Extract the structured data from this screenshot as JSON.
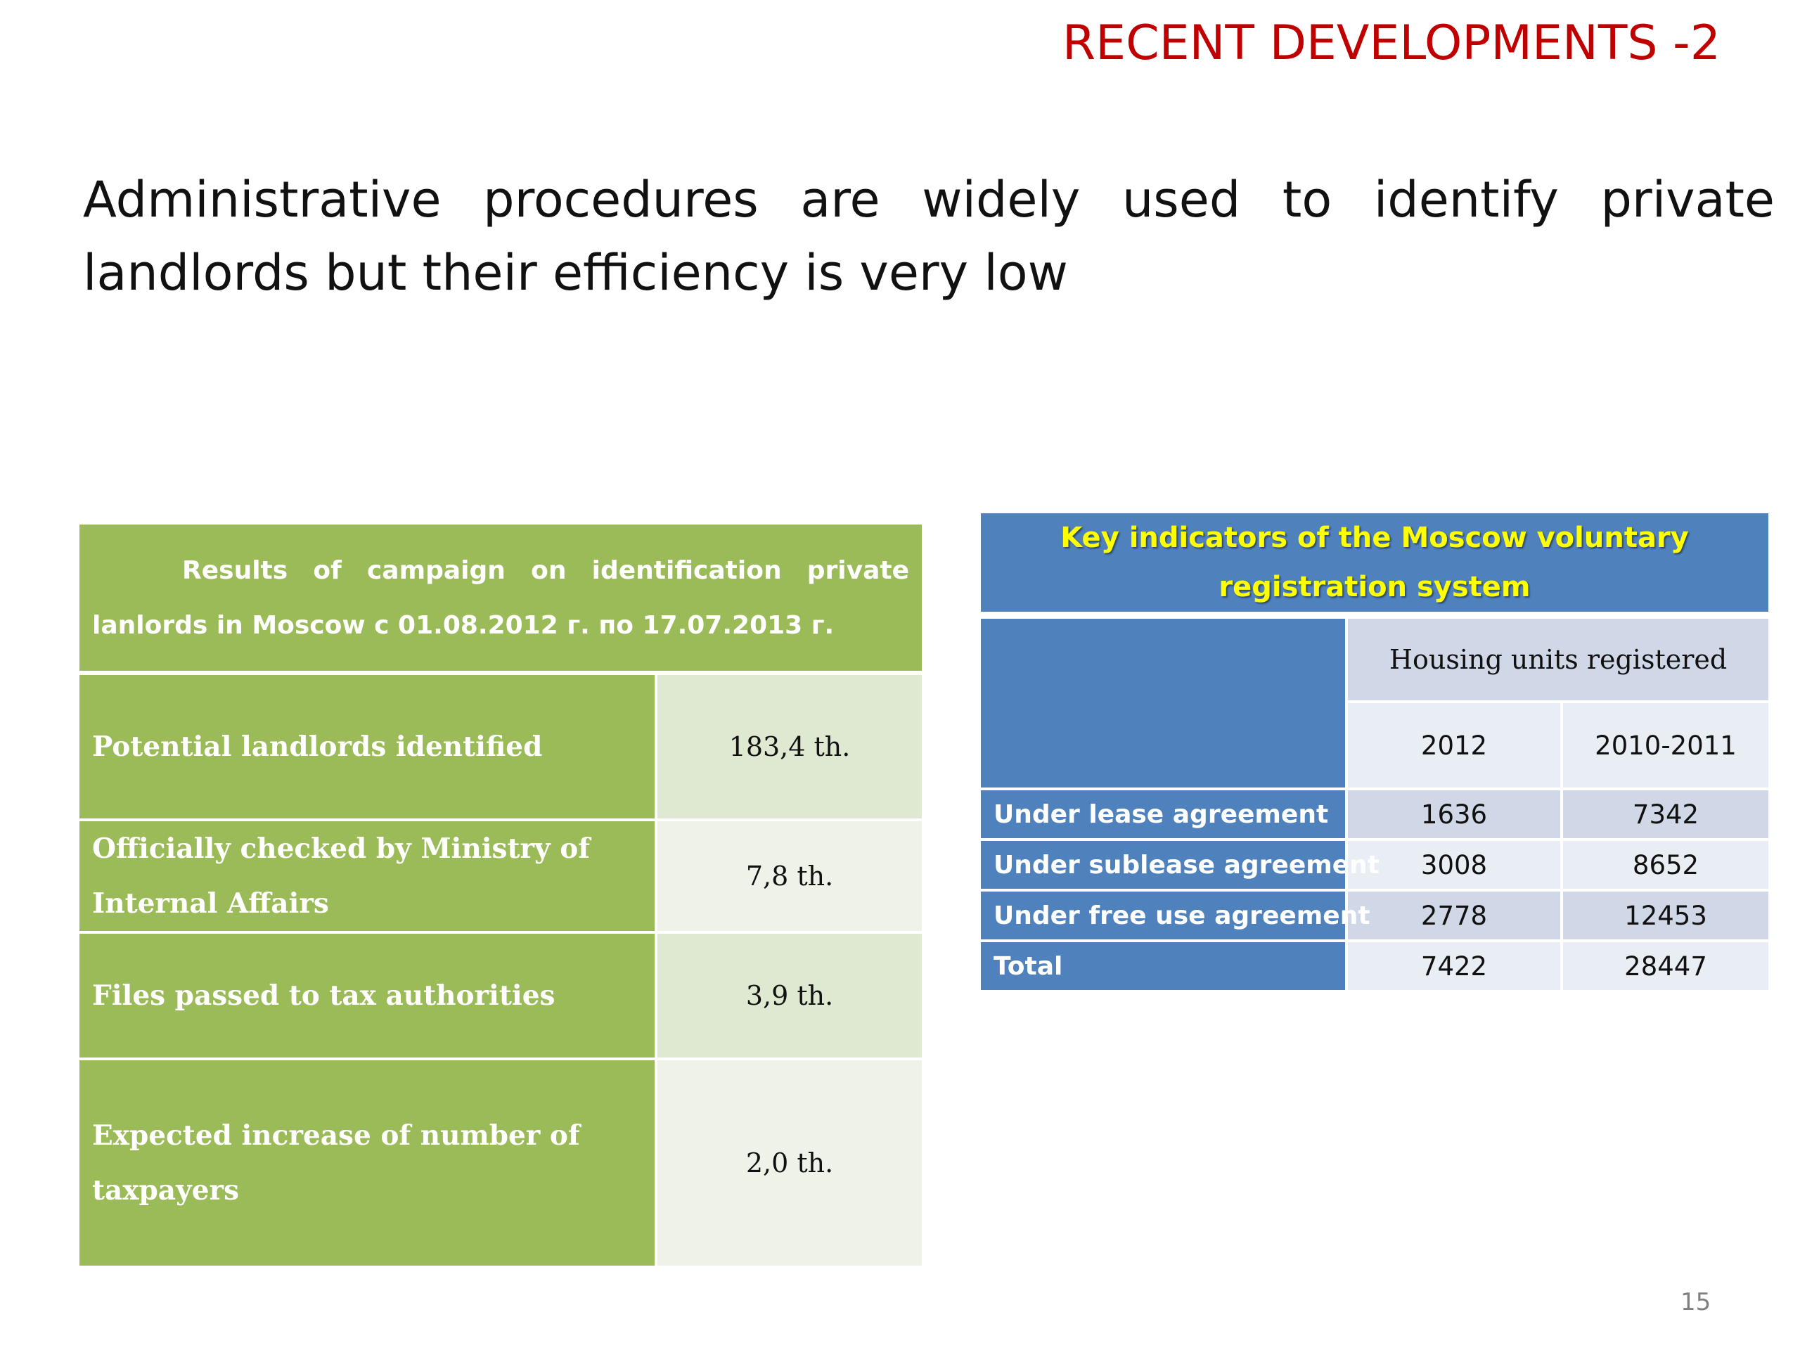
{
  "slide": {
    "title": "RECENT DEVELOPMENTS -2",
    "headline": "Administrative procedures are widely used to identify private landlords but their efficiency is very low",
    "page_number": "15"
  },
  "left_table": {
    "header": "Results of campaign on identification private lanlords in Moscow c 01.08.2012 г. по 17.07.2013 г.",
    "rows": [
      {
        "label": "Potential landlords identified",
        "value": "183,4 th."
      },
      {
        "label": "Officially checked by Ministry of  Internal Affairs",
        "value": "7,8 th."
      },
      {
        "label": "Files passed to tax authorities",
        "value": "3,9 th."
      },
      {
        "label": "Expected increase of number of taxpayers",
        "value": "2,0 th."
      }
    ]
  },
  "right_table": {
    "header": "Key indicators of the Moscow voluntary registration system",
    "group_header": "Housing units registered",
    "years": [
      "2012",
      "2010-2011"
    ],
    "rows": [
      {
        "label": "Under lease agreement",
        "values": [
          "1636",
          "7342"
        ]
      },
      {
        "label": "Under sublease agreement",
        "values": [
          "3008",
          "8652"
        ]
      },
      {
        "label": "Under free use agreement",
        "values": [
          "2778",
          "12453"
        ]
      },
      {
        "label": "Total",
        "values": [
          "7422",
          "28447"
        ]
      }
    ]
  },
  "colors": {
    "title_red": "#c00000",
    "green": "#9bbb59",
    "blue": "#4f81bd",
    "yellow_text": "#ffff00"
  }
}
